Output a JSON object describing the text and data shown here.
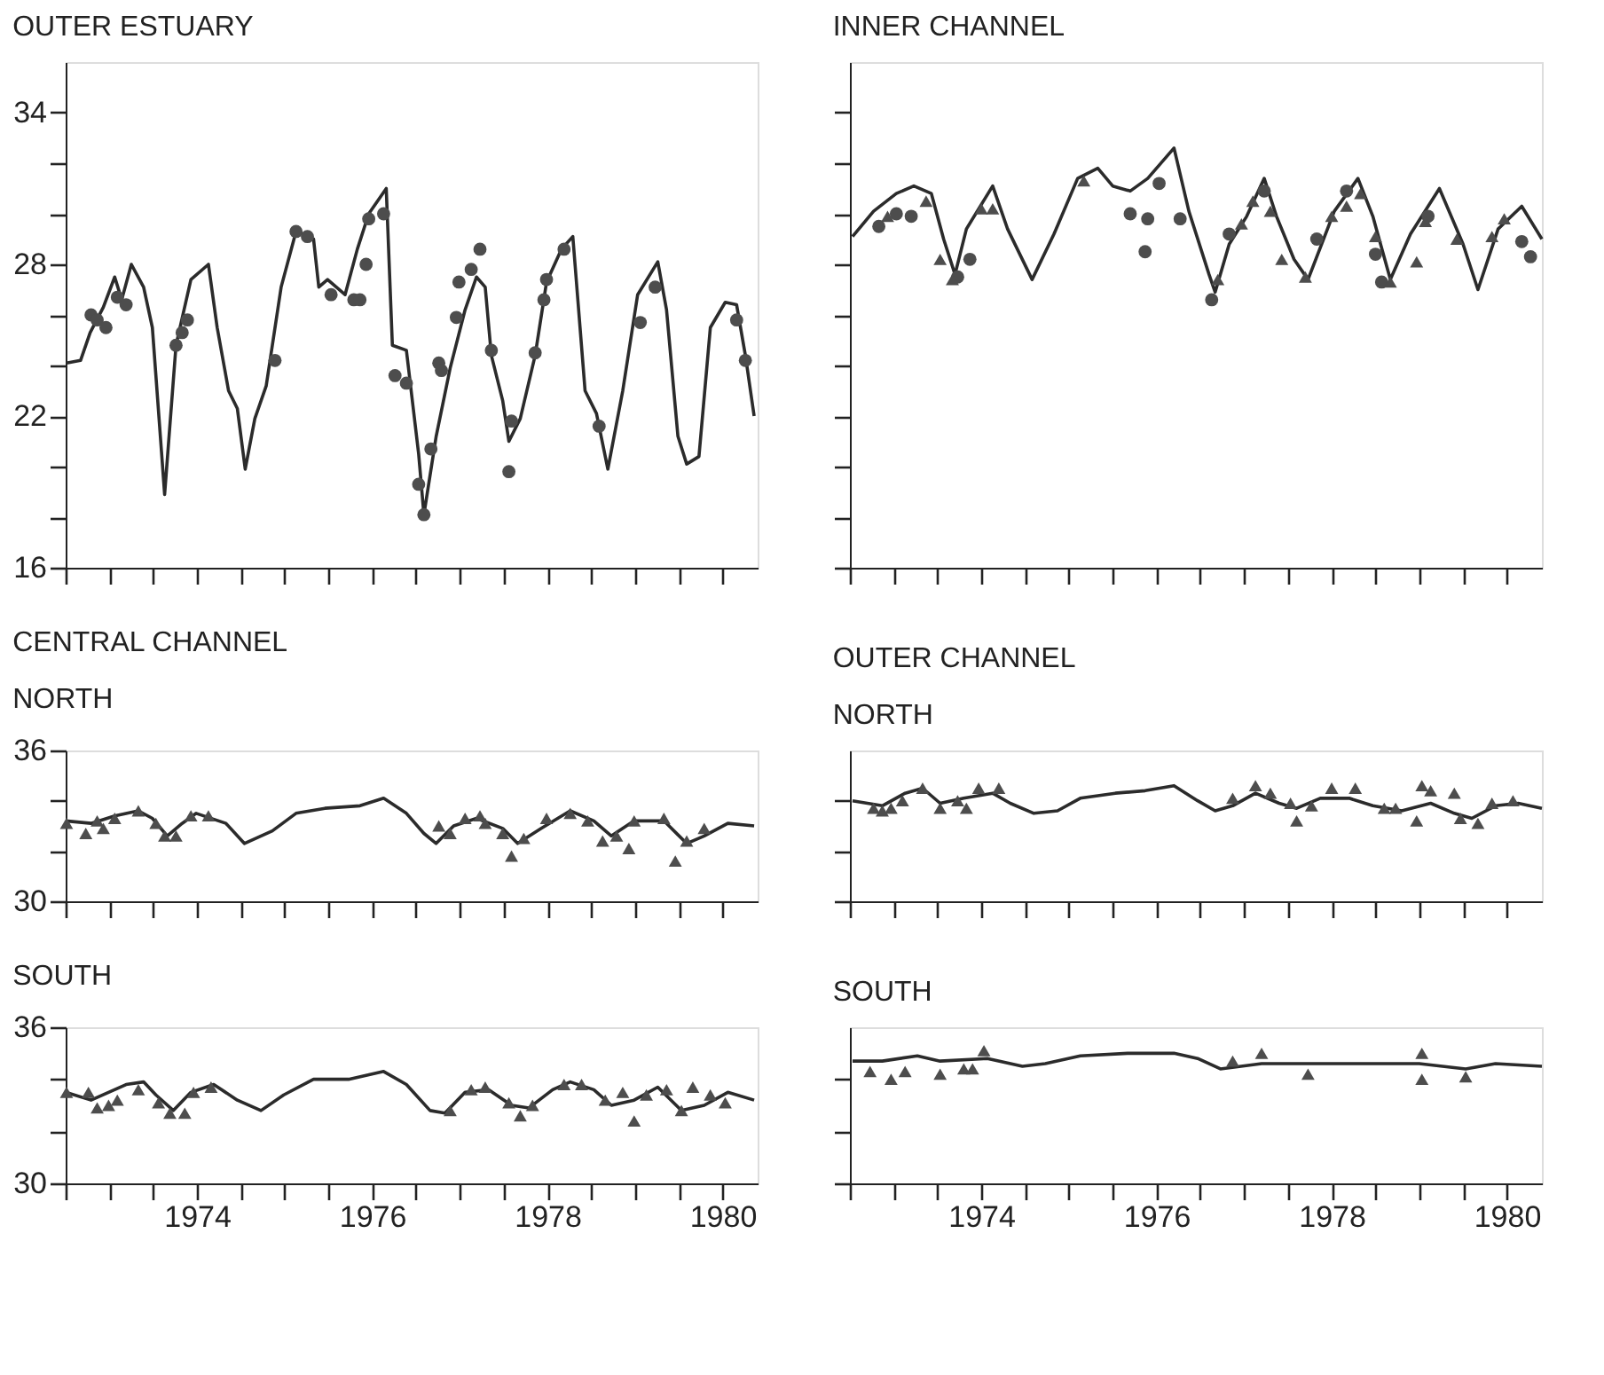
{
  "chart_data": [
    {
      "type": "line",
      "title": "OUTER ESTUARY",
      "xlim": [
        1972.5,
        1980.4
      ],
      "ylim": [
        16,
        36
      ],
      "tick_labels": "y",
      "grid": false,
      "xticks": [
        {
          "value": 1972.5,
          "label": null
        },
        {
          "value": 1973,
          "label": null
        },
        {
          "value": 1973.5,
          "label": null
        },
        {
          "value": 1974,
          "label": null
        },
        {
          "value": 1974.5,
          "label": null
        },
        {
          "value": 1975,
          "label": null
        },
        {
          "value": 1975.5,
          "label": null
        },
        {
          "value": 1976,
          "label": null
        },
        {
          "value": 1976.5,
          "label": null
        },
        {
          "value": 1977,
          "label": null
        },
        {
          "value": 1977.5,
          "label": null
        },
        {
          "value": 1978,
          "label": null
        },
        {
          "value": 1978.5,
          "label": null
        },
        {
          "value": 1979,
          "label": null
        },
        {
          "value": 1979.5,
          "label": null
        },
        {
          "value": 1980,
          "label": null
        }
      ],
      "yticks": [
        16,
        {
          "value": 18,
          "label": null
        },
        {
          "value": 20,
          "label": null
        },
        22,
        {
          "value": 24,
          "label": null
        },
        {
          "value": 26,
          "label": null
        },
        28,
        {
          "value": 30,
          "label": null
        },
        {
          "value": 32,
          "label": null
        },
        34
      ],
      "series": [
        {
          "color": "#2b2b2b",
          "marker": "none",
          "line_style": "solid",
          "x": [
            1972.51,
            1972.67,
            1972.78,
            1972.93,
            1973.06,
            1973.14,
            1973.25,
            1973.39,
            1973.49,
            1973.63,
            1973.76,
            1973.93,
            1974.13,
            1974.23,
            1974.36,
            1974.46,
            1974.55,
            1974.66,
            1974.79,
            1974.96,
            1975.13,
            1975.33,
            1975.39,
            1975.49,
            1975.69,
            1975.83,
            1975.96,
            1976.16,
            1976.23,
            1976.39,
            1976.53,
            1976.59,
            1976.73,
            1976.89,
            1977.06,
            1977.19,
            1977.29,
            1977.36,
            1977.49,
            1977.56,
            1977.69,
            1977.86,
            1977.99,
            1978.16,
            1978.29,
            1978.43,
            1978.56,
            1978.69,
            1978.86,
            1979.03,
            1979.26,
            1979.36,
            1979.49,
            1979.59,
            1979.73,
            1979.86,
            1980.03,
            1980.16,
            1980.26,
            1980.36
          ],
          "values": [
            24.1,
            24.2,
            25.3,
            26.3,
            27.5,
            26.6,
            28.0,
            27.1,
            25.5,
            18.9,
            24.8,
            27.4,
            28.0,
            25.5,
            23.0,
            22.3,
            19.9,
            21.9,
            23.2,
            27.1,
            29.3,
            29.0,
            27.1,
            27.4,
            26.8,
            28.6,
            30.0,
            31.0,
            24.8,
            24.6,
            20.5,
            18.1,
            21.2,
            23.9,
            26.2,
            27.5,
            27.1,
            24.4,
            22.6,
            21.0,
            21.9,
            24.4,
            27.3,
            28.6,
            29.1,
            23.0,
            22.1,
            19.9,
            23.0,
            26.8,
            28.1,
            26.2,
            21.2,
            20.1,
            20.4,
            25.5,
            26.5,
            26.4,
            24.4,
            22.0
          ]
        },
        {
          "type": "scatter",
          "color": "#4d4d4d",
          "marker": "circle",
          "x": [
            1972.79,
            1972.86,
            1972.96,
            1973.09,
            1973.19,
            1973.76,
            1973.83,
            1973.89,
            1974.89,
            1975.13,
            1975.26,
            1975.53,
            1975.79,
            1975.86,
            1975.93,
            1975.96,
            1976.13,
            1976.26,
            1976.39,
            1976.53,
            1976.59,
            1976.67,
            1976.76,
            1976.79,
            1976.96,
            1976.99,
            1977.13,
            1977.23,
            1977.36,
            1977.56,
            1977.59,
            1977.86,
            1977.96,
            1977.99,
            1978.19,
            1978.59,
            1979.06,
            1979.23,
            1980.16,
            1980.26
          ],
          "values": [
            26.0,
            25.8,
            25.5,
            26.7,
            26.4,
            24.8,
            25.3,
            25.8,
            24.2,
            29.3,
            29.1,
            26.8,
            26.6,
            26.6,
            28.0,
            29.8,
            30.0,
            23.6,
            23.3,
            19.3,
            18.1,
            20.7,
            24.1,
            23.8,
            25.9,
            27.3,
            27.8,
            28.6,
            24.6,
            19.8,
            21.8,
            24.5,
            26.6,
            27.4,
            28.6,
            21.6,
            25.7,
            27.1,
            25.8,
            24.2
          ]
        }
      ]
    },
    {
      "type": "line",
      "title": "INNER CHANNEL",
      "xlim": [
        1972.5,
        1980.4
      ],
      "ylim": [
        16,
        36
      ],
      "tick_labels": false,
      "grid": false,
      "xticks": [
        {
          "value": 1972.5,
          "label": null
        },
        {
          "value": 1973,
          "label": null
        },
        {
          "value": 1973.5,
          "label": null
        },
        {
          "value": 1974,
          "label": null
        },
        {
          "value": 1974.5,
          "label": null
        },
        {
          "value": 1975,
          "label": null
        },
        {
          "value": 1975.5,
          "label": null
        },
        {
          "value": 1976,
          "label": null
        },
        {
          "value": 1976.5,
          "label": null
        },
        {
          "value": 1977,
          "label": null
        },
        {
          "value": 1977.5,
          "label": null
        },
        {
          "value": 1978,
          "label": null
        },
        {
          "value": 1978.5,
          "label": null
        },
        {
          "value": 1979,
          "label": null
        },
        {
          "value": 1979.5,
          "label": null
        },
        {
          "value": 1980,
          "label": null
        }
      ],
      "yticks": [
        {
          "value": 16,
          "label": null
        },
        {
          "value": 18,
          "label": null
        },
        {
          "value": 20,
          "label": null
        },
        {
          "value": 22,
          "label": null
        },
        {
          "value": 24,
          "label": null
        },
        {
          "value": 26,
          "label": null
        },
        {
          "value": 28,
          "label": null
        },
        {
          "value": 30,
          "label": null
        },
        {
          "value": 32,
          "label": null
        },
        {
          "value": 34,
          "label": null
        }
      ],
      "series": [
        {
          "color": "#2b2b2b",
          "marker": "none",
          "line_style": "solid",
          "x": [
            1972.53,
            1972.77,
            1973.03,
            1973.23,
            1973.43,
            1973.57,
            1973.7,
            1973.83,
            1974.13,
            1974.3,
            1974.58,
            1974.83,
            1975.1,
            1975.33,
            1975.5,
            1975.7,
            1975.9,
            1976.2,
            1976.37,
            1976.6,
            1976.67,
            1976.83,
            1977.03,
            1977.23,
            1977.37,
            1977.57,
            1977.73,
            1978.03,
            1978.3,
            1978.47,
            1978.67,
            1978.9,
            1979.23,
            1979.5,
            1979.67,
            1979.9,
            1980.17,
            1980.4
          ],
          "values": [
            29.1,
            30.1,
            30.8,
            31.1,
            30.8,
            29.0,
            27.6,
            29.4,
            31.1,
            29.4,
            27.4,
            29.2,
            31.4,
            31.8,
            31.1,
            30.9,
            31.4,
            32.6,
            30.1,
            27.6,
            26.9,
            28.8,
            29.9,
            31.4,
            29.9,
            28.2,
            27.4,
            30.1,
            31.4,
            29.9,
            27.4,
            29.2,
            31.0,
            28.8,
            27.0,
            29.4,
            30.3,
            29.0
          ]
        },
        {
          "type": "scatter",
          "color": "#4d4d4d",
          "marker": "circle",
          "x": [
            1972.83,
            1973.03,
            1973.2,
            1973.73,
            1973.87,
            1975.7,
            1975.9,
            1975.87,
            1976.03,
            1976.27,
            1976.63,
            1976.83,
            1977.23,
            1977.83,
            1978.17,
            1978.5,
            1978.57,
            1979.1,
            1980.17,
            1980.27
          ],
          "values": [
            29.5,
            30.0,
            29.9,
            27.5,
            28.2,
            30.0,
            29.8,
            28.5,
            31.2,
            29.8,
            26.6,
            29.2,
            30.9,
            29.0,
            30.9,
            28.4,
            27.3,
            29.9,
            28.9,
            28.3
          ]
        },
        {
          "type": "scatter",
          "color": "#4d4d4d",
          "marker": "triangle",
          "x": [
            1972.93,
            1973.37,
            1973.53,
            1973.67,
            1974.0,
            1974.13,
            1975.17,
            1976.7,
            1976.97,
            1977.1,
            1977.3,
            1977.43,
            1977.7,
            1978.0,
            1978.17,
            1978.33,
            1978.5,
            1978.67,
            1978.97,
            1979.07,
            1979.43,
            1979.83,
            1979.97
          ],
          "values": [
            29.9,
            30.5,
            28.2,
            27.4,
            30.2,
            30.2,
            31.3,
            27.4,
            29.6,
            30.5,
            30.1,
            28.2,
            27.5,
            29.9,
            30.3,
            30.8,
            29.1,
            27.3,
            28.1,
            29.7,
            29.0,
            29.1,
            29.8
          ]
        }
      ]
    },
    {
      "type": "line",
      "title": "CENTRAL CHANNEL",
      "subtitle": "NORTH",
      "xlim": [
        1972.5,
        1980.4
      ],
      "ylim": [
        30,
        36
      ],
      "tick_labels": "y",
      "grid": false,
      "xticks": [
        {
          "value": 1972.5,
          "label": null
        },
        {
          "value": 1973,
          "label": null
        },
        {
          "value": 1973.5,
          "label": null
        },
        {
          "value": 1974,
          "label": null
        },
        {
          "value": 1974.5,
          "label": null
        },
        {
          "value": 1975,
          "label": null
        },
        {
          "value": 1975.5,
          "label": null
        },
        {
          "value": 1976,
          "label": null
        },
        {
          "value": 1976.5,
          "label": null
        },
        {
          "value": 1977,
          "label": null
        },
        {
          "value": 1977.5,
          "label": null
        },
        {
          "value": 1978,
          "label": null
        },
        {
          "value": 1978.5,
          "label": null
        },
        {
          "value": 1979,
          "label": null
        },
        {
          "value": 1979.5,
          "label": null
        },
        {
          "value": 1980,
          "label": null
        }
      ],
      "yticks": [
        30,
        {
          "value": 32,
          "label": null
        },
        {
          "value": 34,
          "label": null
        },
        36
      ],
      "series": [
        {
          "color": "#2b2b2b",
          "marker": "none",
          "line_style": "solid",
          "x": [
            1972.5,
            1972.79,
            1973.06,
            1973.33,
            1973.49,
            1973.66,
            1973.83,
            1973.99,
            1974.33,
            1974.54,
            1974.86,
            1975.13,
            1975.46,
            1975.86,
            1976.13,
            1976.39,
            1976.59,
            1976.73,
            1976.93,
            1977.19,
            1977.49,
            1977.66,
            1977.93,
            1978.26,
            1978.53,
            1978.73,
            1978.99,
            1979.33,
            1979.59,
            1979.79,
            1980.06,
            1980.36
          ],
          "values": [
            33.2,
            33.1,
            33.4,
            33.6,
            33.3,
            32.6,
            33.1,
            33.5,
            33.1,
            32.3,
            32.8,
            33.5,
            33.7,
            33.8,
            34.1,
            33.5,
            32.7,
            32.3,
            33.0,
            33.3,
            32.9,
            32.3,
            32.9,
            33.6,
            33.2,
            32.6,
            33.2,
            33.2,
            32.3,
            32.6,
            33.1,
            33.0
          ]
        },
        {
          "type": "scatter",
          "color": "#4d4d4d",
          "marker": "triangle",
          "x": [
            1972.51,
            1972.73,
            1972.86,
            1972.93,
            1973.06,
            1973.33,
            1973.53,
            1973.63,
            1973.76,
            1973.93,
            1974.13,
            1976.76,
            1976.89,
            1977.06,
            1977.23,
            1977.29,
            1977.49,
            1977.59,
            1977.73,
            1977.99,
            1978.26,
            1978.46,
            1978.63,
            1978.79,
            1978.93,
            1978.99,
            1979.33,
            1979.46,
            1979.59,
            1979.79
          ],
          "values": [
            33.1,
            32.7,
            33.2,
            32.9,
            33.3,
            33.6,
            33.1,
            32.6,
            32.6,
            33.4,
            33.4,
            33.0,
            32.7,
            33.3,
            33.4,
            33.1,
            32.7,
            31.8,
            32.5,
            33.3,
            33.5,
            33.2,
            32.4,
            32.6,
            32.1,
            33.2,
            33.3,
            31.6,
            32.4,
            32.9
          ]
        }
      ]
    },
    {
      "type": "line",
      "title": "OUTER CHANNEL",
      "subtitle": "NORTH",
      "xlim": [
        1972.5,
        1980.4
      ],
      "ylim": [
        30,
        36
      ],
      "tick_labels": false,
      "grid": false,
      "xticks": [
        {
          "value": 1972.5,
          "label": null
        },
        {
          "value": 1973,
          "label": null
        },
        {
          "value": 1973.5,
          "label": null
        },
        {
          "value": 1974,
          "label": null
        },
        {
          "value": 1974.5,
          "label": null
        },
        {
          "value": 1975,
          "label": null
        },
        {
          "value": 1975.5,
          "label": null
        },
        {
          "value": 1976,
          "label": null
        },
        {
          "value": 1976.5,
          "label": null
        },
        {
          "value": 1977,
          "label": null
        },
        {
          "value": 1977.5,
          "label": null
        },
        {
          "value": 1978,
          "label": null
        },
        {
          "value": 1978.5,
          "label": null
        },
        {
          "value": 1979,
          "label": null
        },
        {
          "value": 1979.5,
          "label": null
        },
        {
          "value": 1980,
          "label": null
        }
      ],
      "yticks": [
        {
          "value": 30,
          "label": null
        },
        {
          "value": 32,
          "label": null
        },
        {
          "value": 34,
          "label": null
        }
      ],
      "series": [
        {
          "color": "#2b2b2b",
          "marker": "none",
          "line_style": "solid",
          "x": [
            1972.53,
            1972.87,
            1973.13,
            1973.33,
            1973.53,
            1973.8,
            1974.13,
            1974.33,
            1974.6,
            1974.87,
            1975.13,
            1975.53,
            1975.87,
            1976.2,
            1976.47,
            1976.67,
            1976.87,
            1977.13,
            1977.4,
            1977.6,
            1977.87,
            1978.2,
            1978.47,
            1978.8,
            1979.13,
            1979.4,
            1979.6,
            1979.87,
            1980.13,
            1980.4
          ],
          "values": [
            34.0,
            33.8,
            34.3,
            34.5,
            33.9,
            34.1,
            34.3,
            33.9,
            33.5,
            33.6,
            34.1,
            34.3,
            34.4,
            34.6,
            34.0,
            33.6,
            33.8,
            34.3,
            33.9,
            33.7,
            34.1,
            34.1,
            33.8,
            33.6,
            33.9,
            33.5,
            33.3,
            33.8,
            33.9,
            33.7
          ]
        },
        {
          "type": "scatter",
          "color": "#4d4d4d",
          "marker": "triangle",
          "x": [
            1972.77,
            1972.87,
            1972.97,
            1973.1,
            1973.33,
            1973.53,
            1973.73,
            1973.83,
            1973.97,
            1974.2,
            1976.87,
            1977.13,
            1977.3,
            1977.53,
            1977.6,
            1977.77,
            1978.0,
            1978.27,
            1978.6,
            1978.73,
            1978.97,
            1979.03,
            1979.13,
            1979.4,
            1979.47,
            1979.67,
            1979.83,
            1980.07
          ],
          "values": [
            33.7,
            33.6,
            33.7,
            34.0,
            34.5,
            33.7,
            34.0,
            33.7,
            34.5,
            34.5,
            34.1,
            34.6,
            34.3,
            33.9,
            33.2,
            33.8,
            34.5,
            34.5,
            33.7,
            33.7,
            33.2,
            34.6,
            34.4,
            34.3,
            33.3,
            33.1,
            33.9,
            34.0
          ]
        }
      ]
    },
    {
      "type": "line",
      "title": "SOUTH",
      "xlim": [
        1972.5,
        1980.4
      ],
      "ylim": [
        30,
        36
      ],
      "grid": false,
      "xticks": [
        {
          "value": 1972.5,
          "label": null
        },
        {
          "value": 1973,
          "label": null
        },
        {
          "value": 1973.5,
          "label": null
        },
        1974,
        {
          "value": 1974.5,
          "label": null
        },
        {
          "value": 1975,
          "label": null
        },
        {
          "value": 1975.5,
          "label": null
        },
        1976,
        {
          "value": 1976.5,
          "label": null
        },
        {
          "value": 1977,
          "label": null
        },
        {
          "value": 1977.5,
          "label": null
        },
        1978,
        {
          "value": 1978.5,
          "label": null
        },
        {
          "value": 1979,
          "label": null
        },
        {
          "value": 1979.5,
          "label": null
        },
        1980
      ],
      "yticks": [
        30,
        {
          "value": 32,
          "label": null
        },
        {
          "value": 34,
          "label": null
        },
        36
      ],
      "series": [
        {
          "color": "#2b2b2b",
          "marker": "none",
          "line_style": "solid",
          "x": [
            1972.5,
            1972.79,
            1973.19,
            1973.39,
            1973.53,
            1973.73,
            1973.93,
            1974.19,
            1974.46,
            1974.73,
            1974.99,
            1975.33,
            1975.73,
            1976.13,
            1976.39,
            1976.66,
            1976.83,
            1977.06,
            1977.33,
            1977.59,
            1977.79,
            1978.06,
            1978.26,
            1978.53,
            1978.73,
            1978.99,
            1979.26,
            1979.53,
            1979.79,
            1980.06,
            1980.36
          ],
          "values": [
            33.5,
            33.2,
            33.8,
            33.9,
            33.4,
            32.8,
            33.5,
            33.8,
            33.2,
            32.8,
            33.4,
            34.0,
            34.0,
            34.3,
            33.8,
            32.8,
            32.7,
            33.5,
            33.6,
            33.0,
            32.9,
            33.6,
            33.9,
            33.6,
            33.0,
            33.2,
            33.7,
            32.8,
            33.0,
            33.5,
            33.2
          ]
        },
        {
          "type": "scatter",
          "color": "#4d4d4d",
          "marker": "triangle",
          "x": [
            1972.51,
            1972.76,
            1972.86,
            1972.99,
            1973.09,
            1973.33,
            1973.56,
            1973.69,
            1973.86,
            1973.96,
            1974.16,
            1976.89,
            1977.13,
            1977.29,
            1977.56,
            1977.69,
            1977.83,
            1978.19,
            1978.39,
            1978.66,
            1978.86,
            1978.99,
            1979.13,
            1979.36,
            1979.53,
            1979.66,
            1979.86,
            1980.03
          ],
          "values": [
            33.5,
            33.5,
            32.9,
            33.0,
            33.2,
            33.6,
            33.1,
            32.7,
            32.7,
            33.5,
            33.7,
            32.8,
            33.6,
            33.7,
            33.1,
            32.6,
            33.0,
            33.8,
            33.8,
            33.2,
            33.5,
            32.4,
            33.4,
            33.6,
            32.8,
            33.7,
            33.4,
            33.1
          ]
        }
      ]
    },
    {
      "type": "line",
      "title": "SOUTH",
      "xlim": [
        1972.5,
        1980.4
      ],
      "ylim": [
        30,
        36
      ],
      "tick_labels": "x",
      "grid": false,
      "xticks": [
        {
          "value": 1972.5,
          "label": null
        },
        {
          "value": 1973,
          "label": null
        },
        {
          "value": 1973.5,
          "label": null
        },
        1974,
        {
          "value": 1974.5,
          "label": null
        },
        {
          "value": 1975,
          "label": null
        },
        {
          "value": 1975.5,
          "label": null
        },
        1976,
        {
          "value": 1976.5,
          "label": null
        },
        {
          "value": 1977,
          "label": null
        },
        {
          "value": 1977.5,
          "label": null
        },
        1978,
        {
          "value": 1978.5,
          "label": null
        },
        {
          "value": 1979,
          "label": null
        },
        {
          "value": 1979.5,
          "label": null
        },
        1980
      ],
      "yticks": [
        {
          "value": 30,
          "label": null
        },
        {
          "value": 32,
          "label": null
        },
        {
          "value": 34,
          "label": null
        }
      ],
      "series": [
        {
          "color": "#2b2b2b",
          "marker": "none",
          "line_style": "solid",
          "x": [
            1972.53,
            1972.87,
            1973.27,
            1973.53,
            1974.07,
            1974.47,
            1974.73,
            1975.13,
            1975.67,
            1976.2,
            1976.47,
            1976.73,
            1977.2,
            1977.87,
            1978.53,
            1979.0,
            1979.53,
            1979.87,
            1980.4
          ],
          "values": [
            34.7,
            34.7,
            34.9,
            34.7,
            34.8,
            34.5,
            34.6,
            34.9,
            35.0,
            35.0,
            34.8,
            34.4,
            34.6,
            34.6,
            34.6,
            34.6,
            34.4,
            34.6,
            34.5
          ]
        },
        {
          "type": "scatter",
          "color": "#4d4d4d",
          "marker": "triangle",
          "x": [
            1972.73,
            1972.97,
            1973.13,
            1973.53,
            1973.8,
            1973.9,
            1974.03,
            1976.87,
            1977.2,
            1977.73,
            1979.03,
            1979.03,
            1979.53
          ],
          "values": [
            34.3,
            34.0,
            34.3,
            34.2,
            34.4,
            34.4,
            35.1,
            34.7,
            35.0,
            34.2,
            35.0,
            34.0,
            34.1
          ]
        }
      ]
    }
  ]
}
